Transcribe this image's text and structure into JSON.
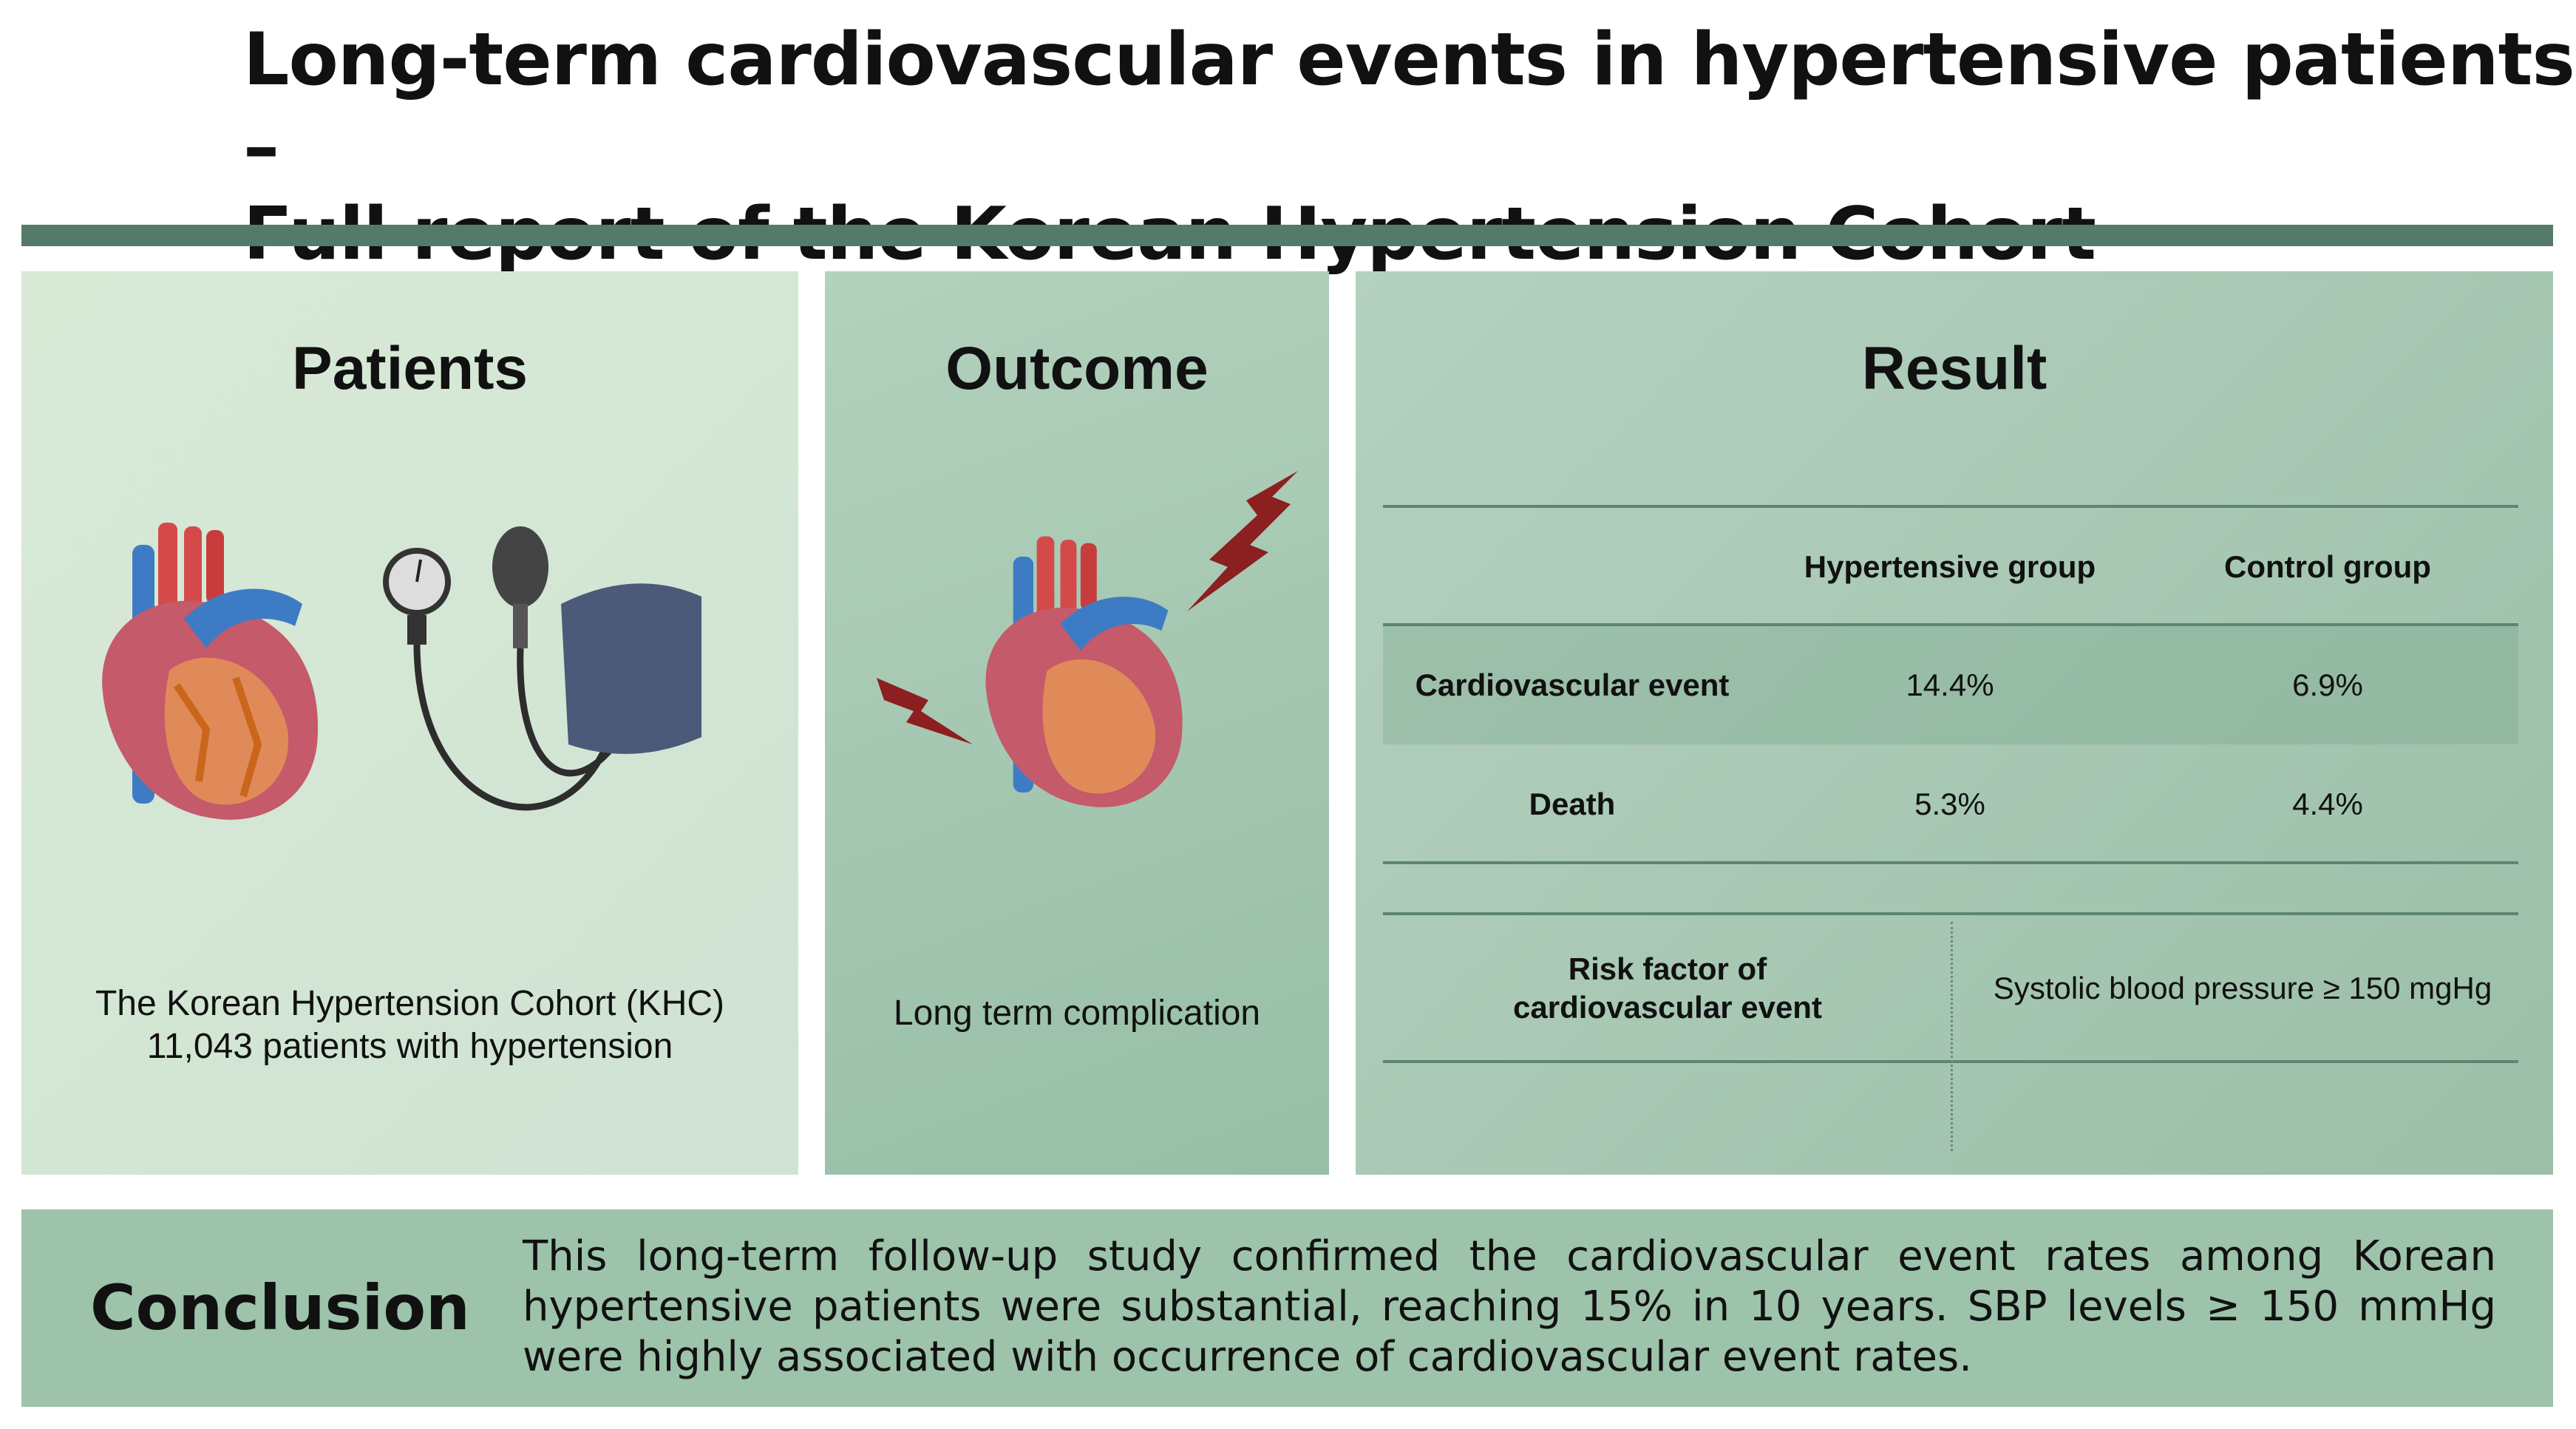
{
  "title": {
    "line1": "Long-term cardiovascular events in hypertensive patients –",
    "line2": "Full report of the Korean Hypertension Cohort"
  },
  "patients": {
    "heading": "Patients",
    "line1": "The Korean Hypertension Cohort (KHC)",
    "line2": "11,043 patients with hypertension"
  },
  "outcome": {
    "heading": "Outcome",
    "text": "Long term complication"
  },
  "result": {
    "heading": "Result",
    "columns": [
      "Hypertensive group",
      "Control group"
    ],
    "rows": [
      {
        "label": "Cardiovascular event",
        "hypertensive": "14.4%",
        "control": "6.9%"
      },
      {
        "label": "Death",
        "hypertensive": "5.3%",
        "control": "4.4%"
      }
    ],
    "risk": {
      "label_line1": "Risk factor of",
      "label_line2": "cardiovascular event",
      "value": "Systolic blood pressure ≥ 150 mgHg"
    }
  },
  "conclusion": {
    "label": "Conclusion",
    "text": "This long-term follow-up study confirmed the cardiovascular event rates among Korean hypertensive patients were substantial, reaching 15% in 10 years. SBP levels ≥ 150 mmHg were highly associated with occurrence of cardiovascular event rates."
  },
  "colors": {
    "band": "#547b69",
    "conclusion": "#9dc3ab"
  }
}
